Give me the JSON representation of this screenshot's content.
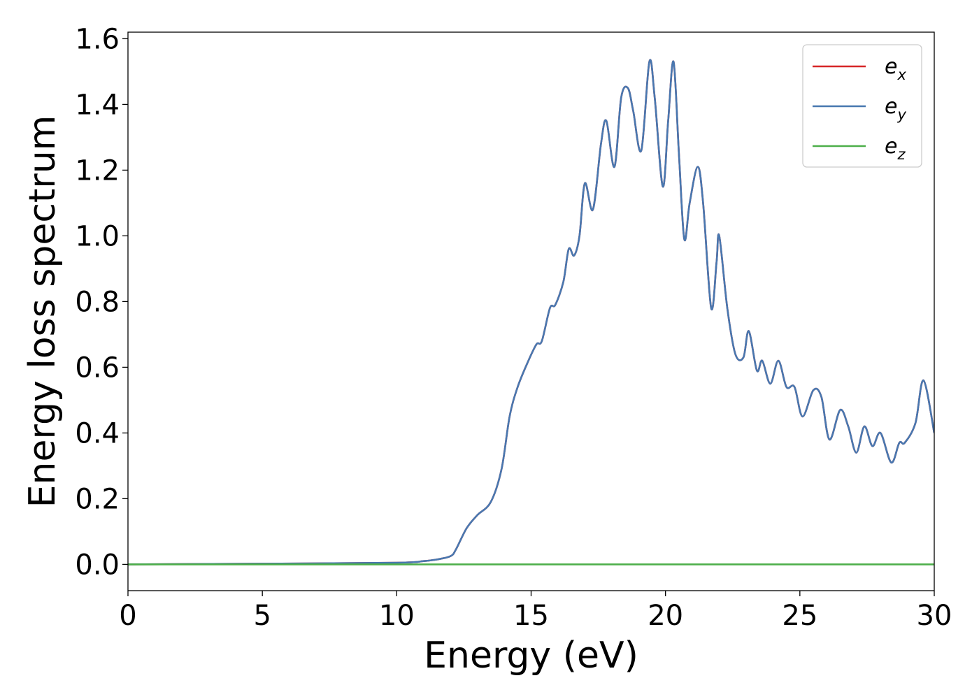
{
  "chart_data": {
    "type": "line",
    "title": "",
    "xlabel": "Energy (eV)",
    "ylabel": "Energy loss spectrum",
    "xlim": [
      0,
      30
    ],
    "ylim": [
      -0.08,
      1.62
    ],
    "xticks": [
      0,
      5,
      10,
      15,
      20,
      25,
      30
    ],
    "xtick_labels": [
      "0",
      "5",
      "10",
      "15",
      "20",
      "25",
      "30"
    ],
    "yticks": [
      0.0,
      0.2,
      0.4,
      0.6,
      0.8,
      1.0,
      1.2,
      1.4,
      1.6
    ],
    "ytick_labels": [
      "0.0",
      "0.2",
      "0.4",
      "0.6",
      "0.8",
      "1.0",
      "1.2",
      "1.4",
      "1.6"
    ],
    "grid": false,
    "legend_position": "top-right",
    "series": [
      {
        "name": "e_x",
        "legend_base": "e",
        "legend_sub": "x",
        "color": "#d62728",
        "x": [
          0,
          5,
          10,
          11,
          11.5,
          12,
          12.2,
          12.6,
          13.0,
          13.5,
          13.9,
          14.2,
          14.5,
          14.9,
          15.2,
          15.4,
          15.7,
          15.9,
          16.2,
          16.4,
          16.6,
          16.8,
          17.0,
          17.3,
          17.6,
          17.8,
          18.1,
          18.35,
          18.6,
          18.8,
          19.1,
          19.4,
          19.6,
          19.9,
          20.1,
          20.3,
          20.5,
          20.7,
          20.9,
          21.2,
          21.4,
          21.7,
          21.9,
          22.0,
          22.3,
          22.6,
          22.9,
          23.1,
          23.4,
          23.6,
          23.9,
          24.2,
          24.5,
          24.8,
          25.1,
          25.5,
          25.8,
          26.1,
          26.5,
          26.8,
          27.1,
          27.4,
          27.7,
          28.0,
          28.4,
          28.7,
          28.9,
          29.3,
          29.6,
          30.0
        ],
        "y": [
          0,
          0.002,
          0.005,
          0.01,
          0.015,
          0.025,
          0.045,
          0.11,
          0.15,
          0.19,
          0.29,
          0.45,
          0.54,
          0.62,
          0.67,
          0.68,
          0.78,
          0.79,
          0.86,
          0.96,
          0.94,
          1.0,
          1.16,
          1.08,
          1.28,
          1.35,
          1.21,
          1.42,
          1.45,
          1.38,
          1.26,
          1.53,
          1.42,
          1.15,
          1.35,
          1.53,
          1.25,
          0.99,
          1.1,
          1.21,
          1.1,
          0.78,
          0.92,
          1.0,
          0.78,
          0.64,
          0.63,
          0.71,
          0.59,
          0.62,
          0.55,
          0.62,
          0.54,
          0.54,
          0.45,
          0.53,
          0.51,
          0.38,
          0.47,
          0.42,
          0.34,
          0.42,
          0.36,
          0.4,
          0.31,
          0.37,
          0.37,
          0.43,
          0.56,
          0.4
        ]
      },
      {
        "name": "e_y",
        "legend_base": "e",
        "legend_sub": "y",
        "color": "#4878b0",
        "x": [
          0,
          5,
          10,
          11,
          11.5,
          12,
          12.2,
          12.6,
          13.0,
          13.5,
          13.9,
          14.2,
          14.5,
          14.9,
          15.2,
          15.4,
          15.7,
          15.9,
          16.2,
          16.4,
          16.6,
          16.8,
          17.0,
          17.3,
          17.6,
          17.8,
          18.1,
          18.35,
          18.6,
          18.8,
          19.1,
          19.4,
          19.6,
          19.9,
          20.1,
          20.3,
          20.5,
          20.7,
          20.9,
          21.2,
          21.4,
          21.7,
          21.9,
          22.0,
          22.3,
          22.6,
          22.9,
          23.1,
          23.4,
          23.6,
          23.9,
          24.2,
          24.5,
          24.8,
          25.1,
          25.5,
          25.8,
          26.1,
          26.5,
          26.8,
          27.1,
          27.4,
          27.7,
          28.0,
          28.4,
          28.7,
          28.9,
          29.3,
          29.6,
          30.0
        ],
        "y": [
          0,
          0.002,
          0.005,
          0.01,
          0.015,
          0.025,
          0.045,
          0.11,
          0.15,
          0.19,
          0.29,
          0.45,
          0.54,
          0.62,
          0.67,
          0.68,
          0.78,
          0.79,
          0.86,
          0.96,
          0.94,
          1.0,
          1.16,
          1.08,
          1.28,
          1.35,
          1.21,
          1.42,
          1.45,
          1.38,
          1.26,
          1.53,
          1.42,
          1.15,
          1.35,
          1.53,
          1.25,
          0.99,
          1.1,
          1.21,
          1.1,
          0.78,
          0.92,
          1.0,
          0.78,
          0.64,
          0.63,
          0.71,
          0.59,
          0.62,
          0.55,
          0.62,
          0.54,
          0.54,
          0.45,
          0.53,
          0.51,
          0.38,
          0.47,
          0.42,
          0.34,
          0.42,
          0.36,
          0.4,
          0.31,
          0.37,
          0.37,
          0.43,
          0.56,
          0.4
        ]
      },
      {
        "name": "e_z",
        "legend_base": "e",
        "legend_sub": "z",
        "color": "#4daf4a",
        "x": [
          0,
          30
        ],
        "y": [
          0,
          0
        ]
      }
    ]
  }
}
